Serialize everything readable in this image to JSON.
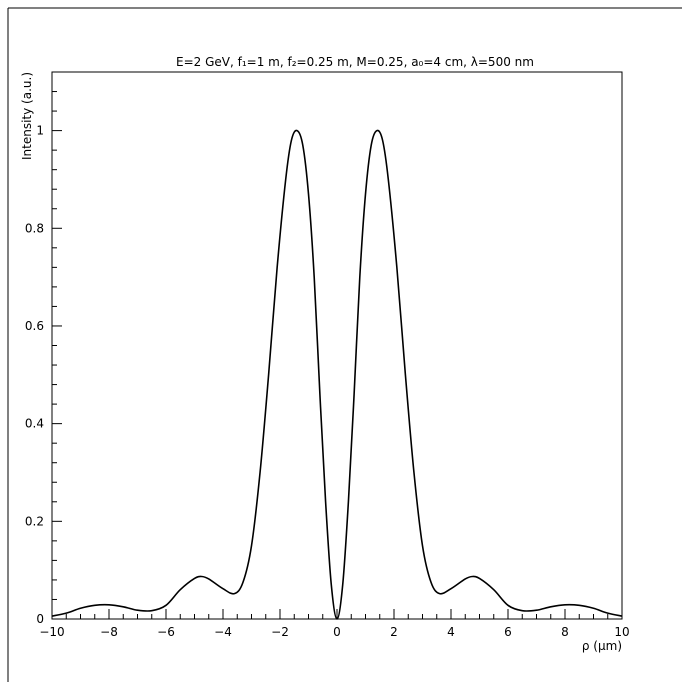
{
  "chart_data": {
    "type": "line",
    "title": "E=2 GeV, f₁=1 m, f₂=0.25 m, M=0.25, a₀=4 cm, λ=500 nm",
    "xlabel": "ρ (μm)",
    "ylabel": "Intensity (a.u.)",
    "xlim": [
      -10,
      10
    ],
    "ylim": [
      0,
      1.12
    ],
    "xticks": [
      "−10",
      "−8",
      "−6",
      "−4",
      "−2",
      "0",
      "2",
      "4",
      "6",
      "8",
      "10"
    ],
    "yticks": [
      "0",
      "0.2",
      "0.4",
      "0.6",
      "0.8",
      "1"
    ],
    "grid": false,
    "series": [
      {
        "color": "#000000",
        "x": [
          -10,
          -9.5,
          -9,
          -8.5,
          -8,
          -7.5,
          -7,
          -6.5,
          -6,
          -5.5,
          -5,
          -4.75,
          -4.5,
          -4,
          -3.6,
          -3.3,
          -3,
          -2.7,
          -2.4,
          -2.1,
          -1.8,
          -1.6,
          -1.4,
          -1.2,
          -1.0,
          -0.8,
          -0.6,
          -0.4,
          -0.2,
          0,
          0.2,
          0.4,
          0.6,
          0.8,
          1.0,
          1.2,
          1.4,
          1.6,
          1.8,
          2.1,
          2.4,
          2.7,
          3,
          3.3,
          3.6,
          4,
          4.5,
          4.75,
          5,
          5.5,
          6,
          6.5,
          7,
          7.5,
          8,
          8.5,
          9,
          9.5,
          10
        ],
        "y": [
          0.006,
          0.012,
          0.022,
          0.028,
          0.029,
          0.025,
          0.018,
          0.017,
          0.028,
          0.06,
          0.083,
          0.087,
          0.082,
          0.062,
          0.052,
          0.075,
          0.15,
          0.3,
          0.5,
          0.72,
          0.9,
          0.98,
          1.0,
          0.97,
          0.87,
          0.7,
          0.46,
          0.24,
          0.07,
          0,
          0.07,
          0.24,
          0.46,
          0.7,
          0.87,
          0.97,
          1.0,
          0.98,
          0.9,
          0.72,
          0.5,
          0.3,
          0.15,
          0.075,
          0.052,
          0.062,
          0.082,
          0.087,
          0.083,
          0.06,
          0.028,
          0.017,
          0.018,
          0.025,
          0.029,
          0.028,
          0.022,
          0.012,
          0.006
        ]
      }
    ]
  }
}
